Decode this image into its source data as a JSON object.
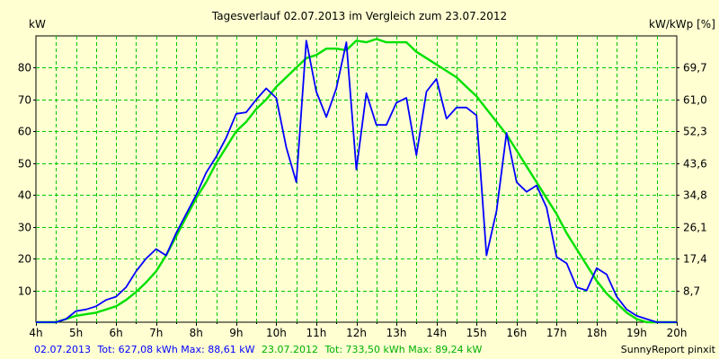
{
  "chart_data": {
    "type": "line",
    "title": "Tagesverlauf 02.07.2013 im Vergleich zum 23.07.2012",
    "ylabel": "kW",
    "ylabel_right": "kW/kWp [%]",
    "xlim": [
      4,
      20
    ],
    "ylim": [
      0,
      90
    ],
    "grid": true,
    "x_tick_labels": [
      "4h",
      "5h",
      "6h",
      "7h",
      "8h",
      "9h",
      "10h",
      "11h",
      "12h",
      "13h",
      "14h",
      "15h",
      "16h",
      "17h",
      "18h",
      "19h",
      "20h"
    ],
    "y_ticks": [
      10,
      20,
      30,
      40,
      50,
      60,
      70,
      80
    ],
    "y_ticks_right": [
      "8,7",
      "17,4",
      "26,1",
      "34,8",
      "43,6",
      "52,3",
      "61,0",
      "69,7"
    ],
    "series": [
      {
        "name": "02.07.2013",
        "color": "#0000ff",
        "x": [
          4.0,
          4.5,
          4.75,
          5.0,
          5.25,
          5.5,
          5.75,
          6.0,
          6.25,
          6.5,
          6.75,
          7.0,
          7.25,
          7.5,
          7.75,
          8.0,
          8.25,
          8.5,
          8.75,
          9.0,
          9.25,
          9.5,
          9.75,
          10.0,
          10.25,
          10.5,
          10.75,
          11.0,
          11.25,
          11.5,
          11.75,
          12.0,
          12.25,
          12.5,
          12.75,
          13.0,
          13.25,
          13.5,
          13.75,
          14.0,
          14.25,
          14.5,
          14.75,
          15.0,
          15.25,
          15.5,
          15.75,
          16.0,
          16.25,
          16.5,
          16.75,
          17.0,
          17.25,
          17.5,
          17.75,
          18.0,
          18.25,
          18.5,
          18.75,
          19.0,
          19.25,
          19.5,
          19.75,
          20.0
        ],
        "y": [
          0,
          0,
          1,
          3.5,
          4,
          5,
          7,
          8,
          11,
          16,
          20,
          23,
          21,
          28,
          34,
          40,
          47,
          52,
          58,
          65.5,
          66,
          70,
          73.5,
          70.5,
          55,
          44,
          88.5,
          72.5,
          64.5,
          73.5,
          88,
          48,
          72,
          62,
          62,
          69,
          70.5,
          52.5,
          72.5,
          76.5,
          64,
          67.5,
          67.5,
          65,
          21,
          35,
          59.5,
          44,
          41,
          43,
          36,
          20.5,
          18.5,
          11,
          10,
          17,
          15,
          8,
          4,
          2,
          1,
          0,
          0,
          0
        ]
      },
      {
        "name": "23.07.2012",
        "color": "#00e000",
        "x": [
          4.0,
          4.5,
          5.0,
          5.25,
          5.5,
          6.0,
          6.25,
          6.5,
          6.75,
          7.0,
          7.25,
          7.5,
          7.75,
          8.0,
          8.25,
          8.5,
          8.75,
          9.0,
          9.25,
          9.5,
          9.75,
          10.0,
          10.25,
          10.5,
          10.75,
          11.0,
          11.25,
          11.5,
          11.75,
          12.0,
          12.25,
          12.5,
          12.75,
          13.0,
          13.25,
          13.5,
          13.75,
          14.0,
          14.25,
          14.5,
          14.75,
          15.0,
          15.25,
          15.5,
          15.75,
          16.0,
          16.25,
          16.5,
          16.75,
          17.0,
          17.25,
          17.5,
          17.75,
          18.0,
          18.25,
          18.5,
          18.75,
          19.0,
          19.25,
          19.5,
          19.75,
          20.0
        ],
        "y": [
          0,
          0,
          2,
          2.5,
          3,
          5,
          7,
          9.5,
          12.5,
          16,
          21,
          27,
          33,
          39,
          44,
          50,
          55,
          60,
          63,
          67,
          70,
          74,
          77,
          80,
          83,
          84,
          86,
          86,
          85.5,
          88.5,
          88,
          89,
          88,
          88,
          88,
          85,
          83,
          81,
          79,
          77,
          74,
          71,
          67,
          63,
          59,
          54,
          49,
          44,
          39,
          34,
          28,
          23,
          18,
          13,
          9,
          6,
          3,
          1,
          0,
          0,
          0,
          0
        ]
      }
    ]
  },
  "footer": {
    "s1_date": "02.07.2013",
    "s1_stats": "Tot: 627,08 kWh Max: 88,61 kW",
    "s2_date": "23.07.2012",
    "s2_stats": "Tot: 733,50 kWh Max: 89,24 kW",
    "brand": "SunnyReport pinxit"
  }
}
